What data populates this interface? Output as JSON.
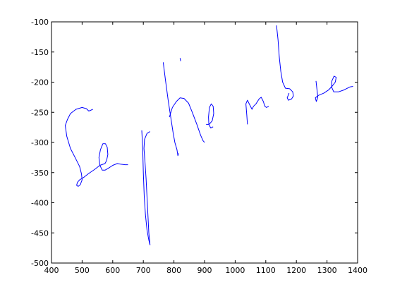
{
  "chart_data": {
    "type": "line",
    "title": "",
    "xlabel": "",
    "ylabel": "",
    "xlim": [
      400,
      1400
    ],
    "ylim": [
      -500,
      -100
    ],
    "grid": false,
    "x_ticks": [
      400,
      500,
      600,
      700,
      800,
      900,
      1000,
      1100,
      1200,
      1300,
      1400
    ],
    "y_ticks": [
      -100,
      -150,
      -200,
      -250,
      -300,
      -350,
      -400,
      -450,
      -500
    ],
    "x_tick_labels": [
      "400",
      "500",
      "600",
      "700",
      "800",
      "900",
      "1000",
      "1100",
      "1200",
      "1300",
      "1400"
    ],
    "y_tick_labels": [
      "-100",
      "-150",
      "-200",
      "-250",
      "-300",
      "-350",
      "-400",
      "-450",
      "-500"
    ],
    "line_color": "#0000ff",
    "series": [
      {
        "points": [
          [
            535,
            -245
          ],
          [
            522,
            -248
          ],
          [
            514,
            -244
          ],
          [
            500,
            -242
          ],
          [
            480,
            -245
          ],
          [
            462,
            -252
          ],
          [
            452,
            -262
          ],
          [
            445,
            -272
          ],
          [
            450,
            -290
          ],
          [
            462,
            -310
          ],
          [
            478,
            -326
          ],
          [
            492,
            -340
          ],
          [
            498,
            -352
          ],
          [
            500,
            -362
          ],
          [
            494,
            -370
          ],
          [
            487,
            -373
          ],
          [
            482,
            -371
          ],
          [
            485,
            -366
          ],
          [
            492,
            -362
          ],
          [
            505,
            -358
          ],
          [
            520,
            -352
          ],
          [
            540,
            -345
          ],
          [
            558,
            -338
          ],
          [
            575,
            -335
          ],
          [
            580,
            -330
          ],
          [
            584,
            -320
          ],
          [
            582,
            -308
          ],
          [
            576,
            -302
          ],
          [
            568,
            -302
          ],
          [
            560,
            -312
          ],
          [
            555,
            -325
          ],
          [
            558,
            -338
          ],
          [
            566,
            -346
          ],
          [
            575,
            -346
          ],
          [
            588,
            -342
          ],
          [
            600,
            -338
          ],
          [
            615,
            -335
          ],
          [
            625,
            -336
          ],
          [
            640,
            -337
          ],
          [
            650,
            -337
          ]
        ]
      },
      {
        "points": [
          [
            695,
            -280
          ],
          [
            698,
            -310
          ],
          [
            700,
            -350
          ],
          [
            703,
            -390
          ],
          [
            707,
            -420
          ],
          [
            712,
            -445
          ],
          [
            718,
            -462
          ],
          [
            722,
            -470
          ]
        ]
      },
      {
        "points": [
          [
            722,
            -282
          ],
          [
            712,
            -285
          ],
          [
            704,
            -295
          ],
          [
            702,
            -310
          ],
          [
            705,
            -330
          ],
          [
            709,
            -360
          ],
          [
            712,
            -390
          ],
          [
            715,
            -420
          ],
          [
            718,
            -450
          ],
          [
            722,
            -470
          ]
        ]
      },
      {
        "points": [
          [
            765,
            -167
          ],
          [
            772,
            -195
          ],
          [
            781,
            -230
          ],
          [
            790,
            -260
          ],
          [
            797,
            -283
          ],
          [
            803,
            -300
          ],
          [
            810,
            -312
          ],
          [
            813,
            -322
          ],
          [
            815,
            -318
          ]
        ]
      },
      {
        "points": [
          [
            820,
            -160
          ],
          [
            822,
            -165
          ]
        ]
      },
      {
        "points": [
          [
            785,
            -258
          ],
          [
            795,
            -242
          ],
          [
            808,
            -232
          ],
          [
            820,
            -226
          ],
          [
            833,
            -227
          ],
          [
            848,
            -235
          ],
          [
            860,
            -250
          ],
          [
            875,
            -270
          ],
          [
            887,
            -288
          ],
          [
            895,
            -297
          ],
          [
            900,
            -300
          ]
        ]
      },
      {
        "points": [
          [
            905,
            -270
          ],
          [
            915,
            -270
          ],
          [
            925,
            -264
          ],
          [
            930,
            -252
          ],
          [
            928,
            -240
          ],
          [
            922,
            -236
          ],
          [
            916,
            -242
          ],
          [
            913,
            -258
          ],
          [
            914,
            -270
          ],
          [
            920,
            -276
          ],
          [
            928,
            -274
          ]
        ]
      },
      {
        "points": [
          [
            1040,
            -270
          ],
          [
            1038,
            -255
          ],
          [
            1035,
            -236
          ],
          [
            1040,
            -230
          ],
          [
            1048,
            -238
          ],
          [
            1055,
            -245
          ],
          [
            1060,
            -240
          ],
          [
            1068,
            -236
          ],
          [
            1078,
            -228
          ],
          [
            1085,
            -225
          ],
          [
            1092,
            -232
          ],
          [
            1097,
            -240
          ],
          [
            1102,
            -242
          ],
          [
            1110,
            -240
          ]
        ]
      },
      {
        "points": [
          [
            1135,
            -106
          ],
          [
            1140,
            -130
          ],
          [
            1144,
            -158
          ],
          [
            1149,
            -182
          ],
          [
            1155,
            -200
          ],
          [
            1164,
            -210
          ],
          [
            1178,
            -211
          ],
          [
            1188,
            -216
          ],
          [
            1190,
            -223
          ],
          [
            1184,
            -228
          ],
          [
            1174,
            -230
          ],
          [
            1170,
            -226
          ],
          [
            1176,
            -218
          ]
        ]
      },
      {
        "points": [
          [
            1264,
            -198
          ],
          [
            1270,
            -225
          ],
          [
            1265,
            -232
          ],
          [
            1262,
            -226
          ],
          [
            1272,
            -222
          ],
          [
            1290,
            -218
          ],
          [
            1305,
            -213
          ],
          [
            1318,
            -206
          ],
          [
            1327,
            -200
          ],
          [
            1330,
            -192
          ],
          [
            1323,
            -190
          ],
          [
            1316,
            -198
          ],
          [
            1315,
            -208
          ],
          [
            1322,
            -216
          ],
          [
            1338,
            -216
          ],
          [
            1355,
            -213
          ],
          [
            1375,
            -208
          ],
          [
            1385,
            -207
          ]
        ]
      }
    ]
  }
}
